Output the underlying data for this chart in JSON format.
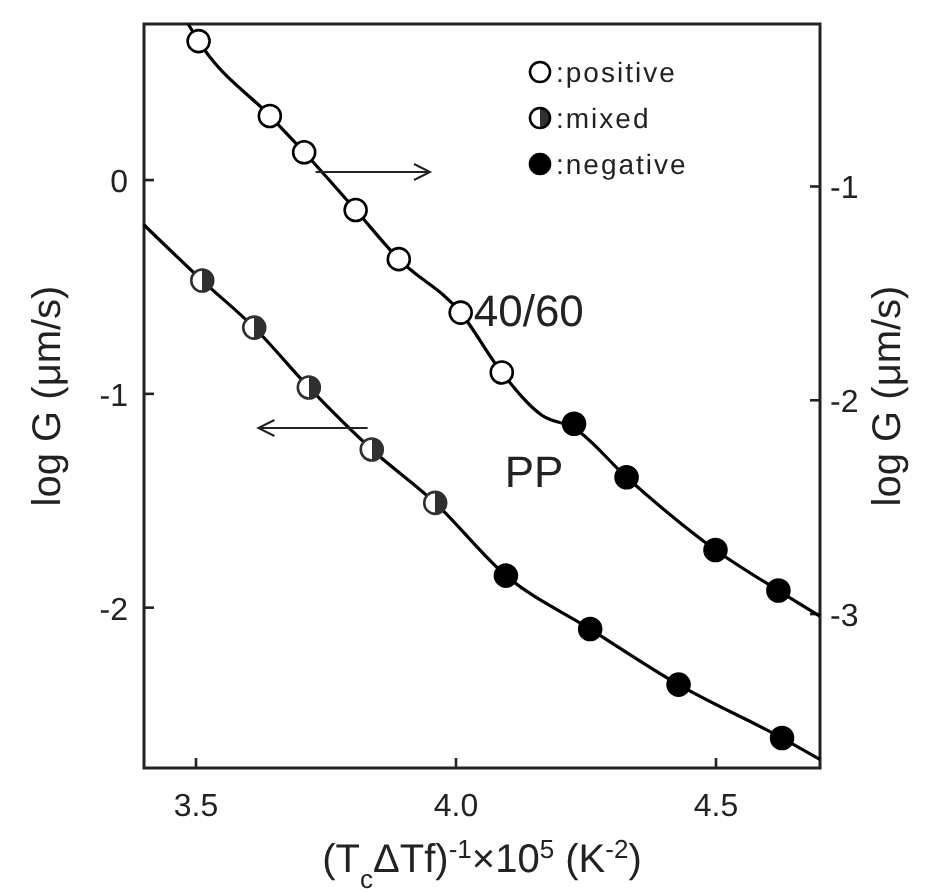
{
  "chart_data": {
    "type": "scatter",
    "xlabel": "(T$_{c}$ΔTf)$^{-1}$×10$^{5}$ (K$^{-2}$)",
    "ylabel": "log G (μm/s)",
    "y2label": "log G (μm/s)",
    "xlim": [
      3.4,
      4.7
    ],
    "xticks": [
      3.5,
      {
        "value": 4,
        "label": "4.0"
      },
      4.5
    ],
    "ylim": [
      -2.75,
      0.73
    ],
    "yticks": [
      0,
      -1,
      -2
    ],
    "y2lim": [
      -3.72,
      -0.24
    ],
    "y2ticks": [
      -1,
      -2,
      -3
    ],
    "grid": false,
    "legend": "top right",
    "marker": "circle",
    "series": [
      {
        "type": "line",
        "marker": "none",
        "axis": "y2",
        "color": "#000000",
        "x": [
          3.485,
          3.505,
          3.642,
          3.708,
          3.807,
          3.89,
          4.009,
          4.088,
          4.165,
          4.227,
          4.328,
          4.499,
          4.62,
          4.7
        ],
        "values": [
          -0.24,
          -0.32,
          -0.67,
          -0.84,
          -1.11,
          -1.34,
          -1.59,
          -1.87,
          -2.07,
          -2.13,
          -2.36,
          -2.7,
          -2.89,
          -3.01
        ]
      },
      {
        "type": "line",
        "marker": "none",
        "axis": "y",
        "color": "#000000",
        "x": [
          3.4,
          3.512,
          3.612,
          3.717,
          3.838,
          3.96,
          4.096,
          4.258,
          4.428,
          4.627,
          4.7
        ],
        "values": [
          -0.21,
          -0.47,
          -0.69,
          -0.97,
          -1.26,
          -1.51,
          -1.85,
          -2.1,
          -2.36,
          -2.61,
          -2.71
        ]
      },
      {
        "name": ":positive",
        "axis": "y2",
        "color": "#ffffff",
        "x": [
          3.505,
          3.642,
          3.708,
          3.807,
          3.89,
          4.009,
          4.088
        ],
        "values": [
          -0.32,
          -0.67,
          -0.84,
          -1.11,
          -1.34,
          -1.59,
          -1.87
        ]
      },
      {
        "name": ":mixed",
        "axis": "y",
        "color": "#303030",
        "x": [
          3.512,
          3.612,
          3.717,
          3.838,
          3.96
        ],
        "values": [
          -0.47,
          -0.69,
          -0.97,
          -1.26,
          -1.51
        ]
      },
      {
        "name": ":negative",
        "axis": "y2",
        "color": "#000000",
        "x": [
          4.227,
          4.328,
          4.499,
          4.62
        ],
        "values": [
          -2.11,
          -2.36,
          -2.7,
          -2.89
        ]
      },
      {
        "axis": "y",
        "color": "#000000",
        "x": [
          4.096,
          4.258,
          4.428,
          4.627
        ],
        "values": [
          -1.85,
          -2.1,
          -2.36,
          -2.61
        ]
      }
    ],
    "annotations": [
      "40/60",
      "PP"
    ]
  }
}
